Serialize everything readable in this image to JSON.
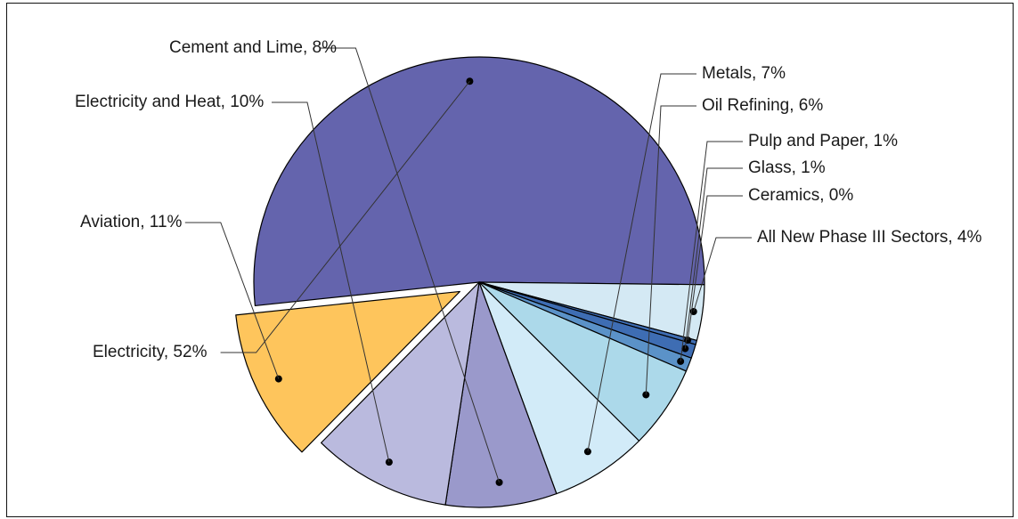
{
  "chart_data": {
    "type": "pie",
    "title": "",
    "slices": [
      {
        "name": "Electricity",
        "label": "Electricity, 52%",
        "value": 52,
        "color": "#6464ad",
        "exploded": false
      },
      {
        "name": "All New Phase III Sectors",
        "label": "All New Phase III Sectors, 4%",
        "value": 4,
        "color": "#d4e9f4",
        "exploded": false
      },
      {
        "name": "Ceramics",
        "label": "Ceramics, 0%",
        "value": 0,
        "color": "#3e6db3",
        "exploded": false
      },
      {
        "name": "Glass",
        "label": "Glass, 1%",
        "value": 1,
        "color": "#3e6db3",
        "exploded": false
      },
      {
        "name": "Pulp and Paper",
        "label": "Pulp and Paper, 1%",
        "value": 1,
        "color": "#5b92c8",
        "exploded": false
      },
      {
        "name": "Oil Refining",
        "label": "Oil Refining, 6%",
        "value": 6,
        "color": "#acd9ea",
        "exploded": false
      },
      {
        "name": "Metals",
        "label": "Metals, 7%",
        "value": 7,
        "color": "#d2ebf8",
        "exploded": false
      },
      {
        "name": "Cement and Lime",
        "label": "Cement and Lime, 8%",
        "value": 8,
        "color": "#9a99cb",
        "exploded": false
      },
      {
        "name": "Electricity and Heat",
        "label": "Electricity and Heat, 10%",
        "value": 10,
        "color": "#babade",
        "exploded": false
      },
      {
        "name": "Aviation",
        "label": "Aviation, 11%",
        "value": 11,
        "color": "#fec55c",
        "exploded": true
      }
    ]
  }
}
